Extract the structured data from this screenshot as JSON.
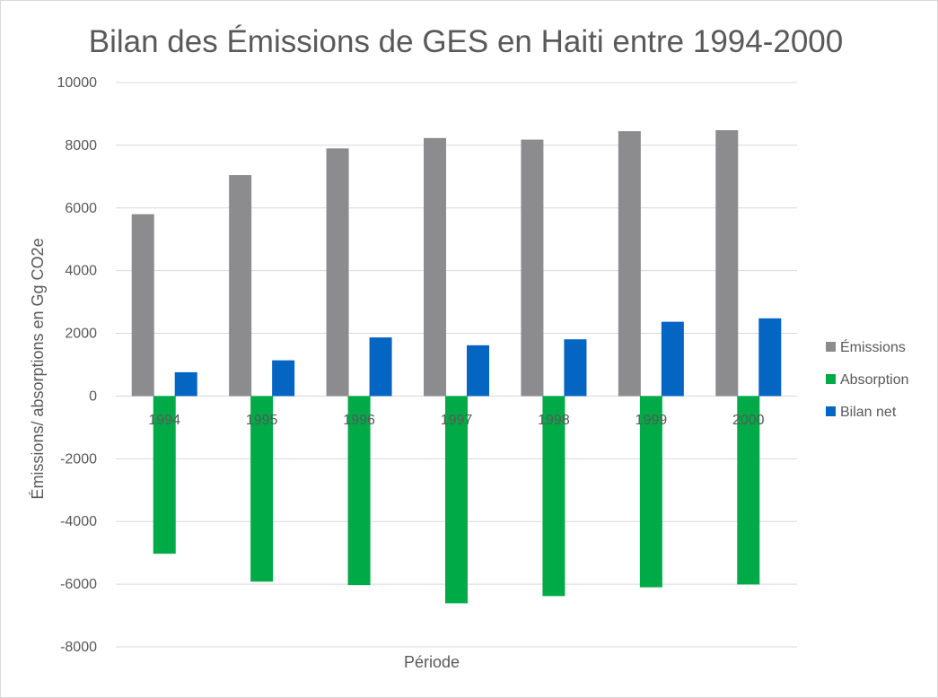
{
  "chart_data": {
    "type": "bar",
    "title": "Bilan des Émissions de GES en Haiti entre 1994-2000",
    "xlabel": "Période",
    "ylabel": "Émissions/ absorptions en Gg CO2e",
    "categories": [
      "1994",
      "1995",
      "1996",
      "1997",
      "1998",
      "1999",
      "2000"
    ],
    "ylim": [
      -8000,
      10000
    ],
    "yticks": [
      10000,
      8000,
      6000,
      4000,
      2000,
      0,
      -2000,
      -4000,
      -6000,
      -8000
    ],
    "grid": true,
    "legend_position": "right",
    "series": [
      {
        "name": "Émissions",
        "color": "#8c8c8f",
        "values": [
          5800,
          7050,
          7900,
          8230,
          8180,
          8450,
          8480
        ]
      },
      {
        "name": "Absorption",
        "color": "#00aa47",
        "values": [
          -5030,
          -5920,
          -6030,
          -6610,
          -6380,
          -6100,
          -6010
        ]
      },
      {
        "name": "Bilan net",
        "color": "#0565c2",
        "values": [
          760,
          1140,
          1870,
          1620,
          1810,
          2370,
          2480
        ]
      }
    ]
  }
}
